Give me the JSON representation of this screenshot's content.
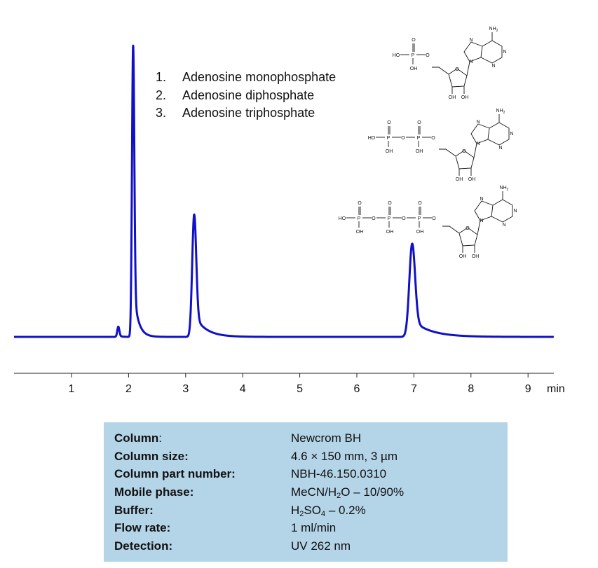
{
  "chart_data": {
    "type": "line",
    "title": "",
    "xlabel": "min",
    "ylabel": "",
    "xlim": [
      0,
      9.4
    ],
    "x_ticks": [
      1,
      2,
      3,
      4,
      5,
      6,
      7,
      8,
      9
    ],
    "grid": false,
    "color": "#1010c8",
    "baseline": 0.0,
    "peaks": [
      {
        "x": 1.82,
        "height": 0.035,
        "width": 0.018,
        "tail": 0.01
      },
      {
        "x": 2.08,
        "height": 1.0,
        "width": 0.02,
        "tail": 0.02
      },
      {
        "x": 3.15,
        "height": 0.42,
        "width": 0.035,
        "tail": 0.05
      },
      {
        "x": 6.97,
        "height": 0.32,
        "width": 0.05,
        "tail": 0.08
      }
    ],
    "annotations": [
      {
        "num": "1.",
        "name": "Adenosine monophosphate"
      },
      {
        "num": "2.",
        "name": "Adenosine diphosphate"
      },
      {
        "num": "3.",
        "name": "Adenosine triphosphate"
      }
    ]
  },
  "structures": {
    "nh2": "NH",
    "n": "N",
    "ho": "HO",
    "p": "P",
    "o": "O",
    "oh": "OH"
  },
  "conditions": [
    {
      "label": "Column",
      "value": "Newcrom  BH"
    },
    {
      "label": "Column size",
      "value": "4.6 × 150 mm, 3 µm"
    },
    {
      "label": "Column part number",
      "value": "NBH-46.150.0310"
    },
    {
      "label": "Mobile phase",
      "value": "MeCN/H2O – 10/90%"
    },
    {
      "label": "Buffer",
      "value": "H2SO4  – 0.2%"
    },
    {
      "label": "Flow rate",
      "value": "1 ml/min"
    },
    {
      "label": "Detection",
      "value": "UV 262 nm"
    }
  ]
}
